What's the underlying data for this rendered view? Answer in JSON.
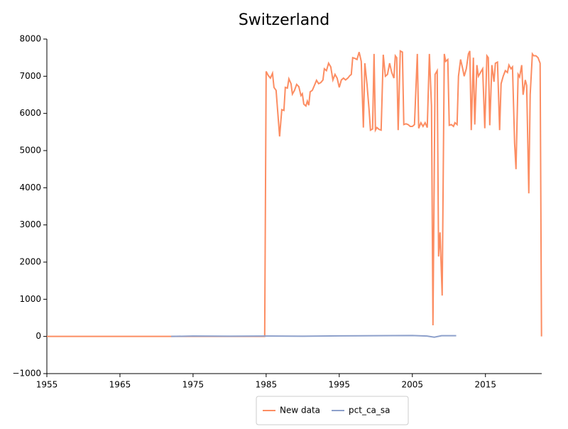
{
  "chart_data": {
    "type": "line",
    "title": "Switzerland",
    "xlim": [
      1955,
      2022.7
    ],
    "xticks": [
      1955,
      1965,
      1975,
      1985,
      1995,
      2005,
      2015
    ],
    "ylim": [
      -1000,
      8000
    ],
    "yticks": [
      {
        "value": -1000,
        "label": "−1000"
      },
      0,
      1000,
      2000,
      3000,
      4000,
      5000,
      6000,
      7000,
      8000
    ],
    "grid": false,
    "legend": "bottom",
    "series": [
      {
        "name": "New data",
        "color": "#fc8d62",
        "x": [
          1955,
          1984.8,
          1985.0,
          1985.29,
          1985.58,
          1985.87,
          1986.07,
          1986.36,
          1986.84,
          1987.14,
          1987.43,
          1987.62,
          1987.91,
          1988.11,
          1988.4,
          1988.59,
          1988.88,
          1989.17,
          1989.47,
          1989.76,
          1989.95,
          1990.15,
          1990.44,
          1990.63,
          1990.83,
          1991.02,
          1991.31,
          1991.6,
          1991.89,
          1992.18,
          1992.48,
          1992.77,
          1992.96,
          1993.25,
          1993.54,
          1993.84,
          1994.13,
          1994.42,
          1994.71,
          1995.0,
          1995.29,
          1995.58,
          1995.87,
          1996.17,
          1996.46,
          1996.65,
          1996.84,
          1997.14,
          1997.43,
          1997.72,
          1998.01,
          1998.3,
          1998.5,
          1998.79,
          1999.08,
          1999.27,
          1999.56,
          1999.76,
          1999.95,
          2000.15,
          2000.44,
          2000.73,
          2001.02,
          2001.31,
          2001.6,
          2001.89,
          2002.18,
          2002.48,
          2002.67,
          2002.86,
          2003.06,
          2003.35,
          2003.64,
          2003.83,
          2004.13,
          2004.42,
          2004.71,
          2005.0,
          2005.29,
          2005.68,
          2005.87,
          2006.17,
          2006.46,
          2006.75,
          2007.04,
          2007.33,
          2007.62,
          2007.82,
          2008.11,
          2008.4,
          2008.59,
          2008.79,
          2009.08,
          2009.37,
          2009.56,
          2009.85,
          2010.05,
          2010.34,
          2010.63,
          2010.83,
          2011.12,
          2011.31,
          2011.6,
          2011.89,
          2012.09,
          2012.38,
          2012.67,
          2012.86,
          2013.06,
          2013.35,
          2013.54,
          2013.83,
          2014.03,
          2014.32,
          2014.62,
          2014.91,
          2015.2,
          2015.39,
          2015.59,
          2015.88,
          2016.17,
          2016.36,
          2016.65,
          2016.94,
          2017.14,
          2017.43,
          2017.72,
          2018.01,
          2018.21,
          2018.5,
          2018.7,
          2018.99,
          2019.18,
          2019.47,
          2019.67,
          2019.96,
          2020.15,
          2020.45,
          2020.64,
          2020.93,
          2021.12,
          2021.42,
          2021.61,
          2021.9,
          2022.19,
          2022.48,
          2022.67
        ],
        "values": [
          0,
          0,
          7130,
          7020,
          6950,
          7080,
          6700,
          6620,
          5380,
          6100,
          6080,
          6700,
          6680,
          6930,
          6800,
          6520,
          6620,
          6780,
          6720,
          6480,
          6530,
          6250,
          6200,
          6330,
          6220,
          6580,
          6620,
          6750,
          6890,
          6800,
          6830,
          6900,
          7200,
          7150,
          7350,
          7250,
          6900,
          7050,
          6950,
          6700,
          6900,
          6950,
          6900,
          6950,
          7020,
          7050,
          7500,
          7480,
          7450,
          7650,
          7400,
          5620,
          7350,
          6800,
          6100,
          5550,
          5580,
          7600,
          5550,
          5620,
          5570,
          5550,
          7580,
          7000,
          7050,
          7350,
          7100,
          6950,
          7550,
          7500,
          5550,
          7680,
          7650,
          5700,
          5720,
          5700,
          5650,
          5650,
          5700,
          7600,
          5600,
          5750,
          5650,
          5750,
          5620,
          7600,
          6200,
          300,
          7050,
          7150,
          2150,
          2800,
          1100,
          7600,
          7400,
          7450,
          5680,
          5700,
          5650,
          5750,
          5700,
          7000,
          7450,
          7200,
          7000,
          7200,
          7600,
          7680,
          5550,
          7500,
          5700,
          7300,
          7000,
          7100,
          7200,
          5600,
          7550,
          7500,
          5680,
          7300,
          6850,
          7350,
          7380,
          5550,
          6800,
          7000,
          7150,
          7100,
          7300,
          7200,
          7250,
          5200,
          4500,
          7050,
          6980,
          7300,
          6500,
          6900,
          6750,
          3850,
          6500,
          7600,
          7550,
          7550,
          7500,
          7350,
          0
        ]
      },
      {
        "name": "pct_ca_sa",
        "color": "#8da0cb",
        "x": [
          1972,
          1975,
          1980,
          1985,
          1990,
          1995,
          2000,
          2005,
          2007,
          2008,
          2009,
          2011
        ],
        "values": [
          0,
          10,
          5,
          10,
          5,
          15,
          20,
          25,
          10,
          -20,
          20,
          20
        ]
      }
    ]
  }
}
